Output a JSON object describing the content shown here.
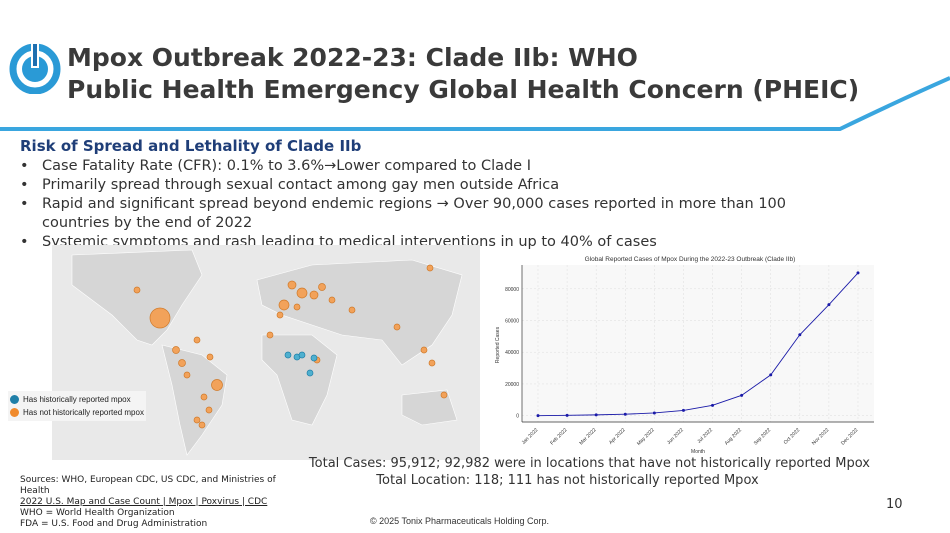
{
  "title": {
    "line1": "Mpox Outbreak 2022-23: Clade IIb: WHO",
    "line2": "Public Health Emergency Global Health Concern (PHEIC)"
  },
  "subheading": "Risk of Spread and Lethality of Clade IIb",
  "bullets": [
    "Case Fatality Rate (CFR): 0.1% to 3.6%→Lower compared to Clade I",
    "Primarily spread through sexual contact among gay men outside Africa",
    "Rapid and significant spread beyond endemic regions → Over 90,000 cases reported in more than 100 countries by the end of 2022",
    "Systemic symptoms and rash leading to medical interventions in up to 40% of cases"
  ],
  "map_legend": {
    "historic": "Has historically reported mpox",
    "not_historic": "Has not historically reported mpox",
    "historic_color": "#1f7fa8",
    "not_historic_color": "#f08a2c"
  },
  "totals": {
    "cases": "Total Cases: 95,912; 92,982 were in locations that have not historically reported Mpox",
    "locations": "Total Location: 118; 111 has not historically reported Mpox"
  },
  "sources": {
    "line1": "Sources: WHO, European CDC, US CDC, and Ministries of Health",
    "link": "2022 U.S. Map and Case Count | Mpox | Poxvirus | CDC",
    "who": "WHO = World Health Organization",
    "fda": "FDA = U.S. Food and Drug Administration"
  },
  "copyright": "© 2025 Tonix Pharmaceuticals Holding Corp.",
  "page_number": "10",
  "chart_data": {
    "type": "line",
    "title": "Global Reported Cases of Mpox During the 2022-23 Outbreak (Clade IIb)",
    "xlabel": "Month",
    "ylabel": "Reported Cases",
    "categories": [
      "Jan 2022",
      "Feb 2022",
      "Mar 2022",
      "Apr 2022",
      "May 2022",
      "Jun 2022",
      "Jul 2022",
      "Aug 2022",
      "Sep 2022",
      "Oct 2022",
      "Nov 2022",
      "Dec 2022"
    ],
    "values": [
      0,
      200,
      500,
      900,
      1700,
      3300,
      6500,
      12800,
      25700,
      51000,
      70000,
      90000
    ],
    "yticks": [
      0,
      20000,
      40000,
      60000,
      80000
    ],
    "ylim": [
      -4000,
      95000
    ],
    "grid": true,
    "color": "#1a1aa8"
  }
}
